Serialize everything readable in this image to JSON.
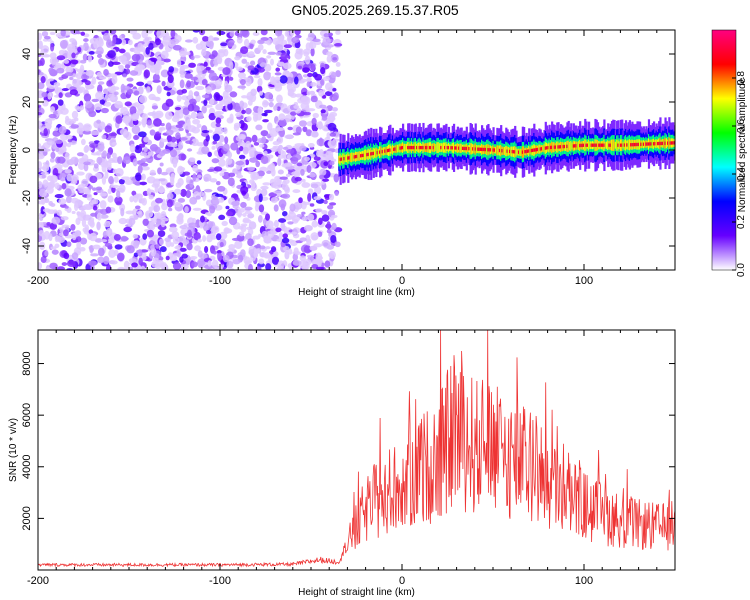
{
  "title": "GN05.2025.269.15.37.R05",
  "chart_data": [
    {
      "type": "heatmap",
      "xlabel": "Height of straight line (km)",
      "ylabel": "Frequency (Hz)",
      "xlim": [
        -200,
        150
      ],
      "ylim": [
        -50,
        50
      ],
      "x_ticks": [
        -200,
        -100,
        0,
        100
      ],
      "y_ticks": [
        -40,
        -20,
        0,
        20,
        40
      ],
      "colorbar": {
        "label": "Normalized spectral amplitude",
        "range": [
          0,
          1
        ],
        "ticks": [
          0.0,
          0.2,
          0.4,
          0.6,
          0.8
        ],
        "tick_labels": [
          "0.0",
          "0.2",
          "0.4",
          "0.6",
          "0.8"
        ],
        "colormap": [
          "#ffffff",
          "#6600ff",
          "#0000ff",
          "#00ffff",
          "#00ff00",
          "#ffff00",
          "#ff0000",
          "#ff0080"
        ]
      },
      "regions": [
        {
          "x_range": [
            -200,
            -35
          ],
          "pattern": "broadband noise",
          "amplitude": [
            0.0,
            0.2
          ]
        },
        {
          "x_range": [
            -35,
            150
          ],
          "pattern": "narrow band near 0 Hz",
          "center_frequency_hz": [
            {
              "x": -35,
              "f": -4
            },
            {
              "x": -20,
              "f": -2
            },
            {
              "x": 0,
              "f": 1
            },
            {
              "x": 25,
              "f": 1
            },
            {
              "x": 50,
              "f": 0
            },
            {
              "x": 65,
              "f": -1
            },
            {
              "x": 80,
              "f": 1
            },
            {
              "x": 100,
              "f": 2
            },
            {
              "x": 120,
              "f": 2
            },
            {
              "x": 150,
              "f": 3
            }
          ],
          "peak_amplitude": 0.9
        }
      ]
    },
    {
      "type": "line",
      "xlabel": "Height of straight line (km)",
      "ylabel": "SNR (10 * v/v)",
      "xlim": [
        -200,
        150
      ],
      "ylim": [
        0,
        9300
      ],
      "x_ticks": [
        -200,
        -100,
        0,
        100
      ],
      "y_ticks": [
        2000,
        4000,
        6000,
        8000
      ],
      "color": "#ee3333",
      "series": [
        {
          "values": [
            {
              "x": -200,
              "y": 200
            },
            {
              "x": -150,
              "y": 200
            },
            {
              "x": -100,
              "y": 200
            },
            {
              "x": -60,
              "y": 220
            },
            {
              "x": -45,
              "y": 400
            },
            {
              "x": -35,
              "y": 300
            },
            {
              "x": -25,
              "y": 1800
            },
            {
              "x": -20,
              "y": 2500
            },
            {
              "x": -10,
              "y": 3200
            },
            {
              "x": 0,
              "y": 3500
            },
            {
              "x": 10,
              "y": 4200
            },
            {
              "x": 20,
              "y": 4600
            },
            {
              "x": 28,
              "y": 5800
            },
            {
              "x": 40,
              "y": 5200
            },
            {
              "x": 50,
              "y": 5000
            },
            {
              "x": 60,
              "y": 4700
            },
            {
              "x": 70,
              "y": 4300
            },
            {
              "x": 80,
              "y": 3700
            },
            {
              "x": 90,
              "y": 3200
            },
            {
              "x": 100,
              "y": 2700
            },
            {
              "x": 110,
              "y": 2300
            },
            {
              "x": 120,
              "y": 2100
            },
            {
              "x": 130,
              "y": 1900
            },
            {
              "x": 140,
              "y": 1800
            },
            {
              "x": 150,
              "y": 1800
            }
          ]
        }
      ]
    }
  ]
}
